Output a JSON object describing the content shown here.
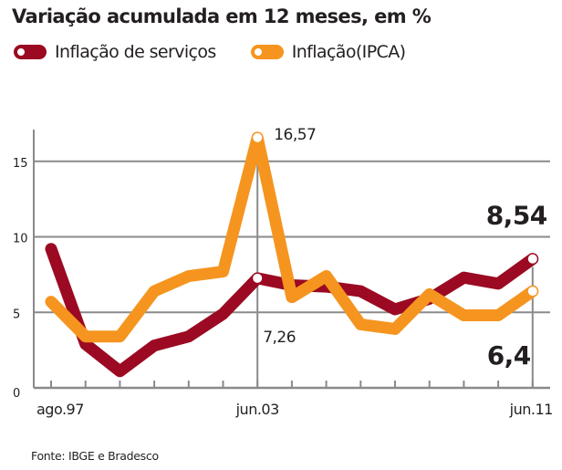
{
  "chart_data": {
    "type": "line",
    "title": "Variação acumulada em 12 meses, em %",
    "xlabel": "",
    "ylabel": "",
    "ylim": [
      0,
      17
    ],
    "yticks": [
      0,
      5,
      10,
      15
    ],
    "ytick_labels": [
      "0",
      "5",
      "10",
      "15"
    ],
    "grid": true,
    "legend_position": "top-left",
    "x": [
      "ago.97",
      "",
      "",
      "",
      "",
      "",
      "jun.03",
      "",
      "",
      "",
      "",
      "",
      "",
      "",
      "jun.11"
    ],
    "xtick_labels": [
      {
        "index": 0,
        "label": "ago.97"
      },
      {
        "index": 6,
        "label": "jun.03"
      },
      {
        "index": 14,
        "label": "jun.11"
      }
    ],
    "series": [
      {
        "name": "Inflação de serviços",
        "color": "#9b0a22",
        "values": [
          9.2,
          2.9,
          1.1,
          2.8,
          3.4,
          4.9,
          7.26,
          6.8,
          6.7,
          6.4,
          5.2,
          5.9,
          7.3,
          6.9,
          8.54
        ]
      },
      {
        "name": "Inflação(IPCA)",
        "color": "#f5951f",
        "values": [
          5.7,
          3.4,
          3.4,
          6.4,
          7.4,
          7.7,
          16.57,
          6.0,
          7.4,
          4.2,
          3.9,
          6.2,
          4.8,
          4.8,
          6.4
        ]
      }
    ],
    "annotations": [
      {
        "text": "16,57",
        "series": 1,
        "index": 6,
        "style": "normal"
      },
      {
        "text": "7,26",
        "series": 0,
        "index": 6,
        "style": "normal"
      },
      {
        "text": "8,54",
        "series": 0,
        "index": 14,
        "style": "bold"
      },
      {
        "text": "6,4",
        "series": 1,
        "index": 14,
        "style": "bold"
      }
    ],
    "marked_points": [
      {
        "series": 1,
        "index": 6
      },
      {
        "series": 0,
        "index": 6
      },
      {
        "series": 0,
        "index": 14
      },
      {
        "series": 1,
        "index": 14
      }
    ]
  },
  "source": "Fonte: IBGE e Bradesco"
}
